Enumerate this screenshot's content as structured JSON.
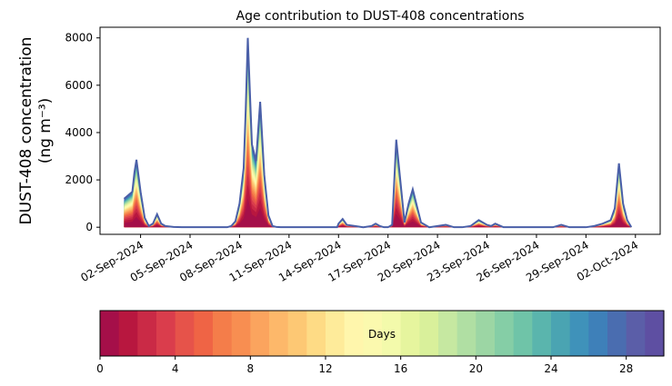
{
  "chart_data": {
    "type": "area",
    "title": "Age contribution to DUST-408 concentrations",
    "ylabel_line1": "DUST-408 concentration",
    "ylabel_line2": "(ng m⁻³)",
    "xlabel": "",
    "x_axis_type": "date",
    "xlim": [
      "2024-08-30T13:00",
      "2024-10-03T12:00"
    ],
    "ylim": [
      -300,
      8450
    ],
    "yticks": [
      0,
      2000,
      4000,
      6000,
      8000
    ],
    "xticks": [
      "02-Sep-2024",
      "05-Sep-2024",
      "08-Sep-2024",
      "11-Sep-2024",
      "14-Sep-2024",
      "17-Sep-2024",
      "20-Sep-2024",
      "23-Sep-2024",
      "26-Sep-2024",
      "29-Sep-2024",
      "02-Oct-2024"
    ],
    "grid": false,
    "total_series": {
      "x": [
        "2024-09-01T00:00",
        "2024-09-01T12:00",
        "2024-09-01T15:00",
        "2024-09-01T18:00",
        "2024-09-02T00:00",
        "2024-09-02T06:00",
        "2024-09-02T12:00",
        "2024-09-02T18:00",
        "2024-09-03T00:00",
        "2024-09-03T06:00",
        "2024-09-03T12:00",
        "2024-09-04T00:00",
        "2024-09-04T12:00",
        "2024-09-05T00:00",
        "2024-09-07T00:00",
        "2024-09-07T06:00",
        "2024-09-07T12:00",
        "2024-09-07T18:00",
        "2024-09-08T00:00",
        "2024-09-08T06:00",
        "2024-09-08T09:00",
        "2024-09-08T12:00",
        "2024-09-08T18:00",
        "2024-09-09T00:00",
        "2024-09-09T06:00",
        "2024-09-09T12:00",
        "2024-09-09T18:00",
        "2024-09-10T00:00",
        "2024-09-10T06:00",
        "2024-09-10T12:00",
        "2024-09-11T00:00",
        "2024-09-13T22:00",
        "2024-09-14T00:00",
        "2024-09-14T06:00",
        "2024-09-14T12:00",
        "2024-09-15T00:00",
        "2024-09-15T12:00",
        "2024-09-16T00:00",
        "2024-09-16T06:00",
        "2024-09-16T12:00",
        "2024-09-16T18:00",
        "2024-09-17T00:00",
        "2024-09-17T06:00",
        "2024-09-17T12:00",
        "2024-09-18T00:00",
        "2024-09-18T06:00",
        "2024-09-18T12:00",
        "2024-09-19T00:00",
        "2024-09-19T12:00",
        "2024-09-20T00:00",
        "2024-09-20T12:00",
        "2024-09-21T00:00",
        "2024-09-21T12:00",
        "2024-09-22T00:00",
        "2024-09-22T12:00",
        "2024-09-23T00:00",
        "2024-09-23T06:00",
        "2024-09-23T12:00",
        "2024-09-24T00:00",
        "2024-09-27T00:00",
        "2024-09-27T12:00",
        "2024-09-28T00:00",
        "2024-09-28T12:00",
        "2024-09-29T00:00",
        "2024-09-29T12:00",
        "2024-09-30T00:00",
        "2024-09-30T12:00",
        "2024-09-30T18:00",
        "2024-10-01T00:00",
        "2024-10-01T06:00",
        "2024-10-01T12:00",
        "2024-10-01T18:00"
      ],
      "y": [
        1200,
        1500,
        2300,
        2850,
        1500,
        400,
        50,
        150,
        550,
        150,
        50,
        10,
        0,
        0,
        0,
        0,
        50,
        250,
        1000,
        2500,
        5000,
        8000,
        3500,
        2800,
        5300,
        2200,
        500,
        50,
        10,
        0,
        0,
        0,
        150,
        350,
        100,
        50,
        0,
        50,
        150,
        50,
        0,
        0,
        100,
        3700,
        200,
        1000,
        1600,
        200,
        0,
        50,
        100,
        0,
        0,
        50,
        300,
        100,
        50,
        150,
        0,
        0,
        100,
        0,
        0,
        0,
        50,
        150,
        300,
        800,
        2700,
        1000,
        300,
        0
      ],
      "color": "#4a5fa8"
    },
    "colorbar": {
      "label": "Days",
      "range": [
        0,
        30
      ],
      "ticks": [
        0,
        4,
        8,
        12,
        16,
        20,
        24,
        28
      ],
      "bins": 30,
      "colors": [
        "#a50f49",
        "#b8173f",
        "#ca2a46",
        "#da3d4c",
        "#e6534a",
        "#ef6445",
        "#f47d4a",
        "#f88e51",
        "#fba45e",
        "#fdb86a",
        "#fdc874",
        "#fedb85",
        "#feeb9a",
        "#fff6ac",
        "#fbf9ae",
        "#f3faab",
        "#e6f59e",
        "#d9f09b",
        "#c6e8a1",
        "#b0dfa3",
        "#9cd6a4",
        "#85cea6",
        "#6fc4a8",
        "#5ab5ad",
        "#4aa4b2",
        "#3f92ba",
        "#3e80b9",
        "#4a6db0",
        "#5b5ea8",
        "#5e4fa2"
      ]
    }
  }
}
